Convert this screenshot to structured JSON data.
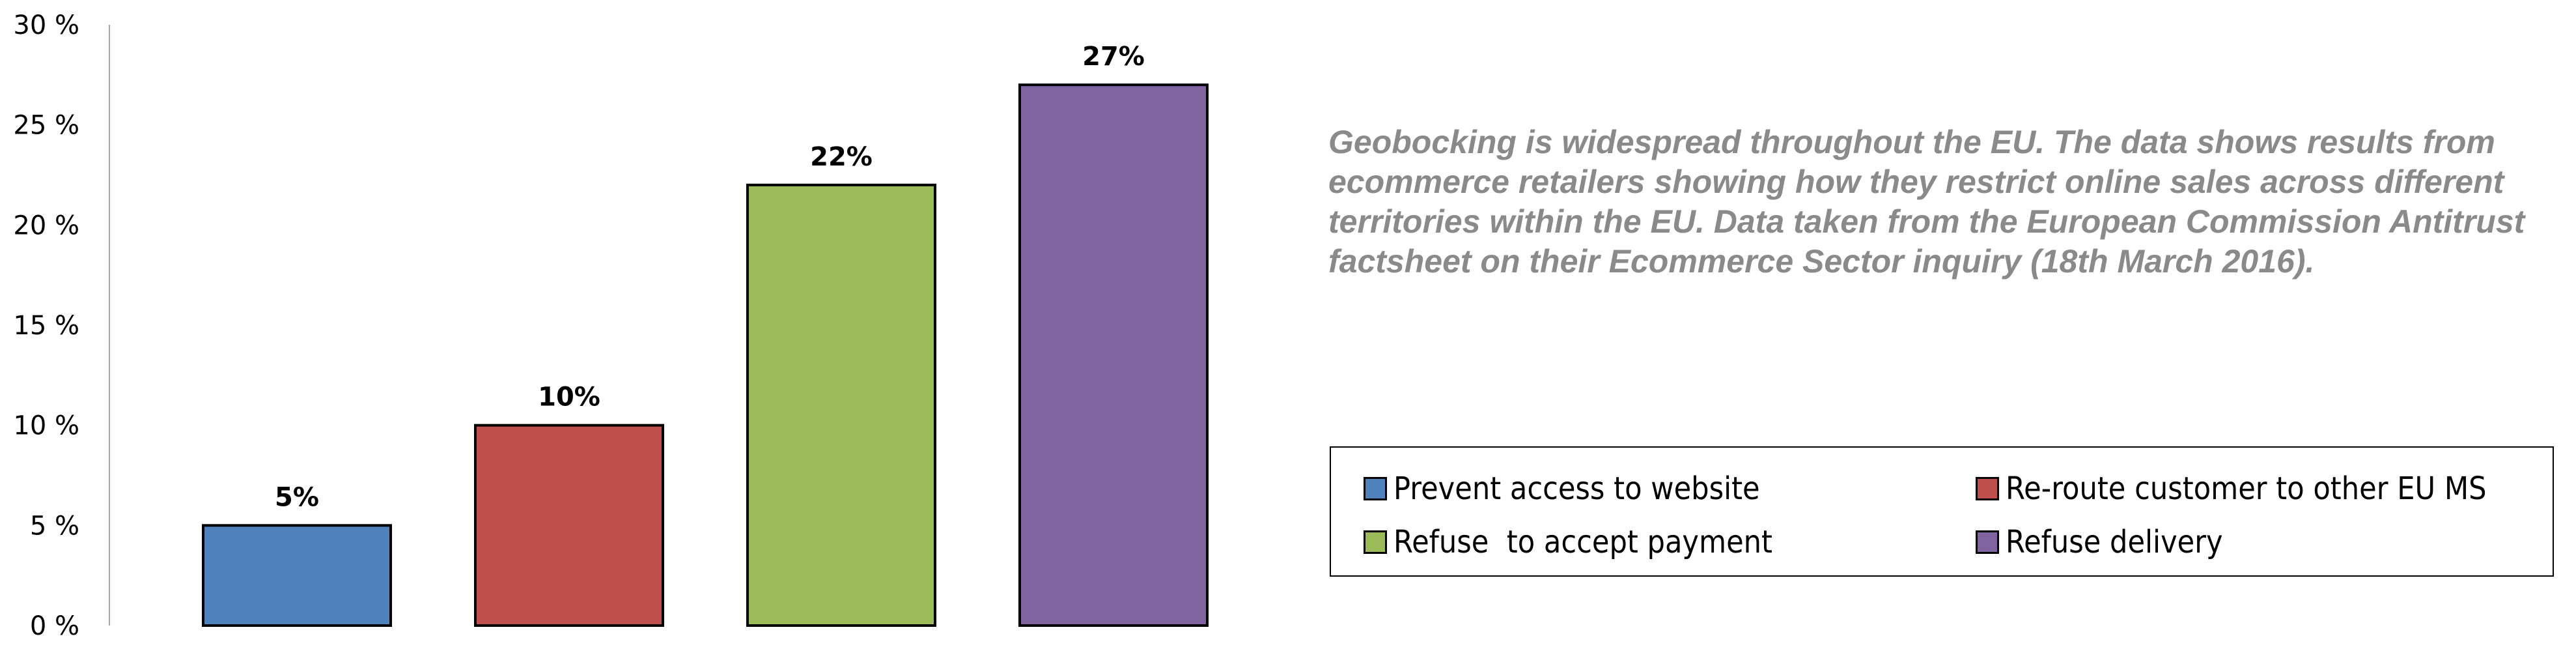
{
  "chart_data": {
    "type": "bar",
    "title": "",
    "xlabel": "",
    "ylabel": "",
    "categories": [
      "Prevent access to website",
      "Re-route customer to other EU MS",
      "Refuse  to accept payment",
      "Refuse delivery"
    ],
    "values": [
      5,
      10,
      22,
      27
    ],
    "data_labels": [
      "5%",
      "10%",
      "22%",
      "27%"
    ],
    "colors": [
      "#4f81bd",
      "#c0504d",
      "#9bbb59",
      "#8064a2"
    ],
    "ylim": [
      0,
      30
    ],
    "yticks": [
      {
        "value": 0,
        "label": "0 %"
      },
      {
        "value": 5,
        "label": "5 %"
      },
      {
        "value": 10,
        "label": "10 %"
      },
      {
        "value": 15,
        "label": "15 %"
      },
      {
        "value": 20,
        "label": "20 %"
      },
      {
        "value": 25,
        "label": "25 %"
      },
      {
        "value": 30,
        "label": "30 %"
      }
    ],
    "grid": false,
    "legend_position": "right",
    "legend": [
      {
        "label": "Prevent access to website",
        "color": "#4f81bd"
      },
      {
        "label": "Re-route customer to other EU MS",
        "color": "#c0504d"
      },
      {
        "label": "Refuse  to accept payment",
        "color": "#9bbb59"
      },
      {
        "label": "Refuse delivery",
        "color": "#8064a2"
      }
    ]
  },
  "note": {
    "text": "Geobocking is widespread throughout the EU. The data shows results from ecommerce retailers showing how they restrict online sales across different territories within the EU. Data taken from the European Commission Antitrust factsheet on their Ecommerce Sector inquiry (18th March 2016)."
  }
}
